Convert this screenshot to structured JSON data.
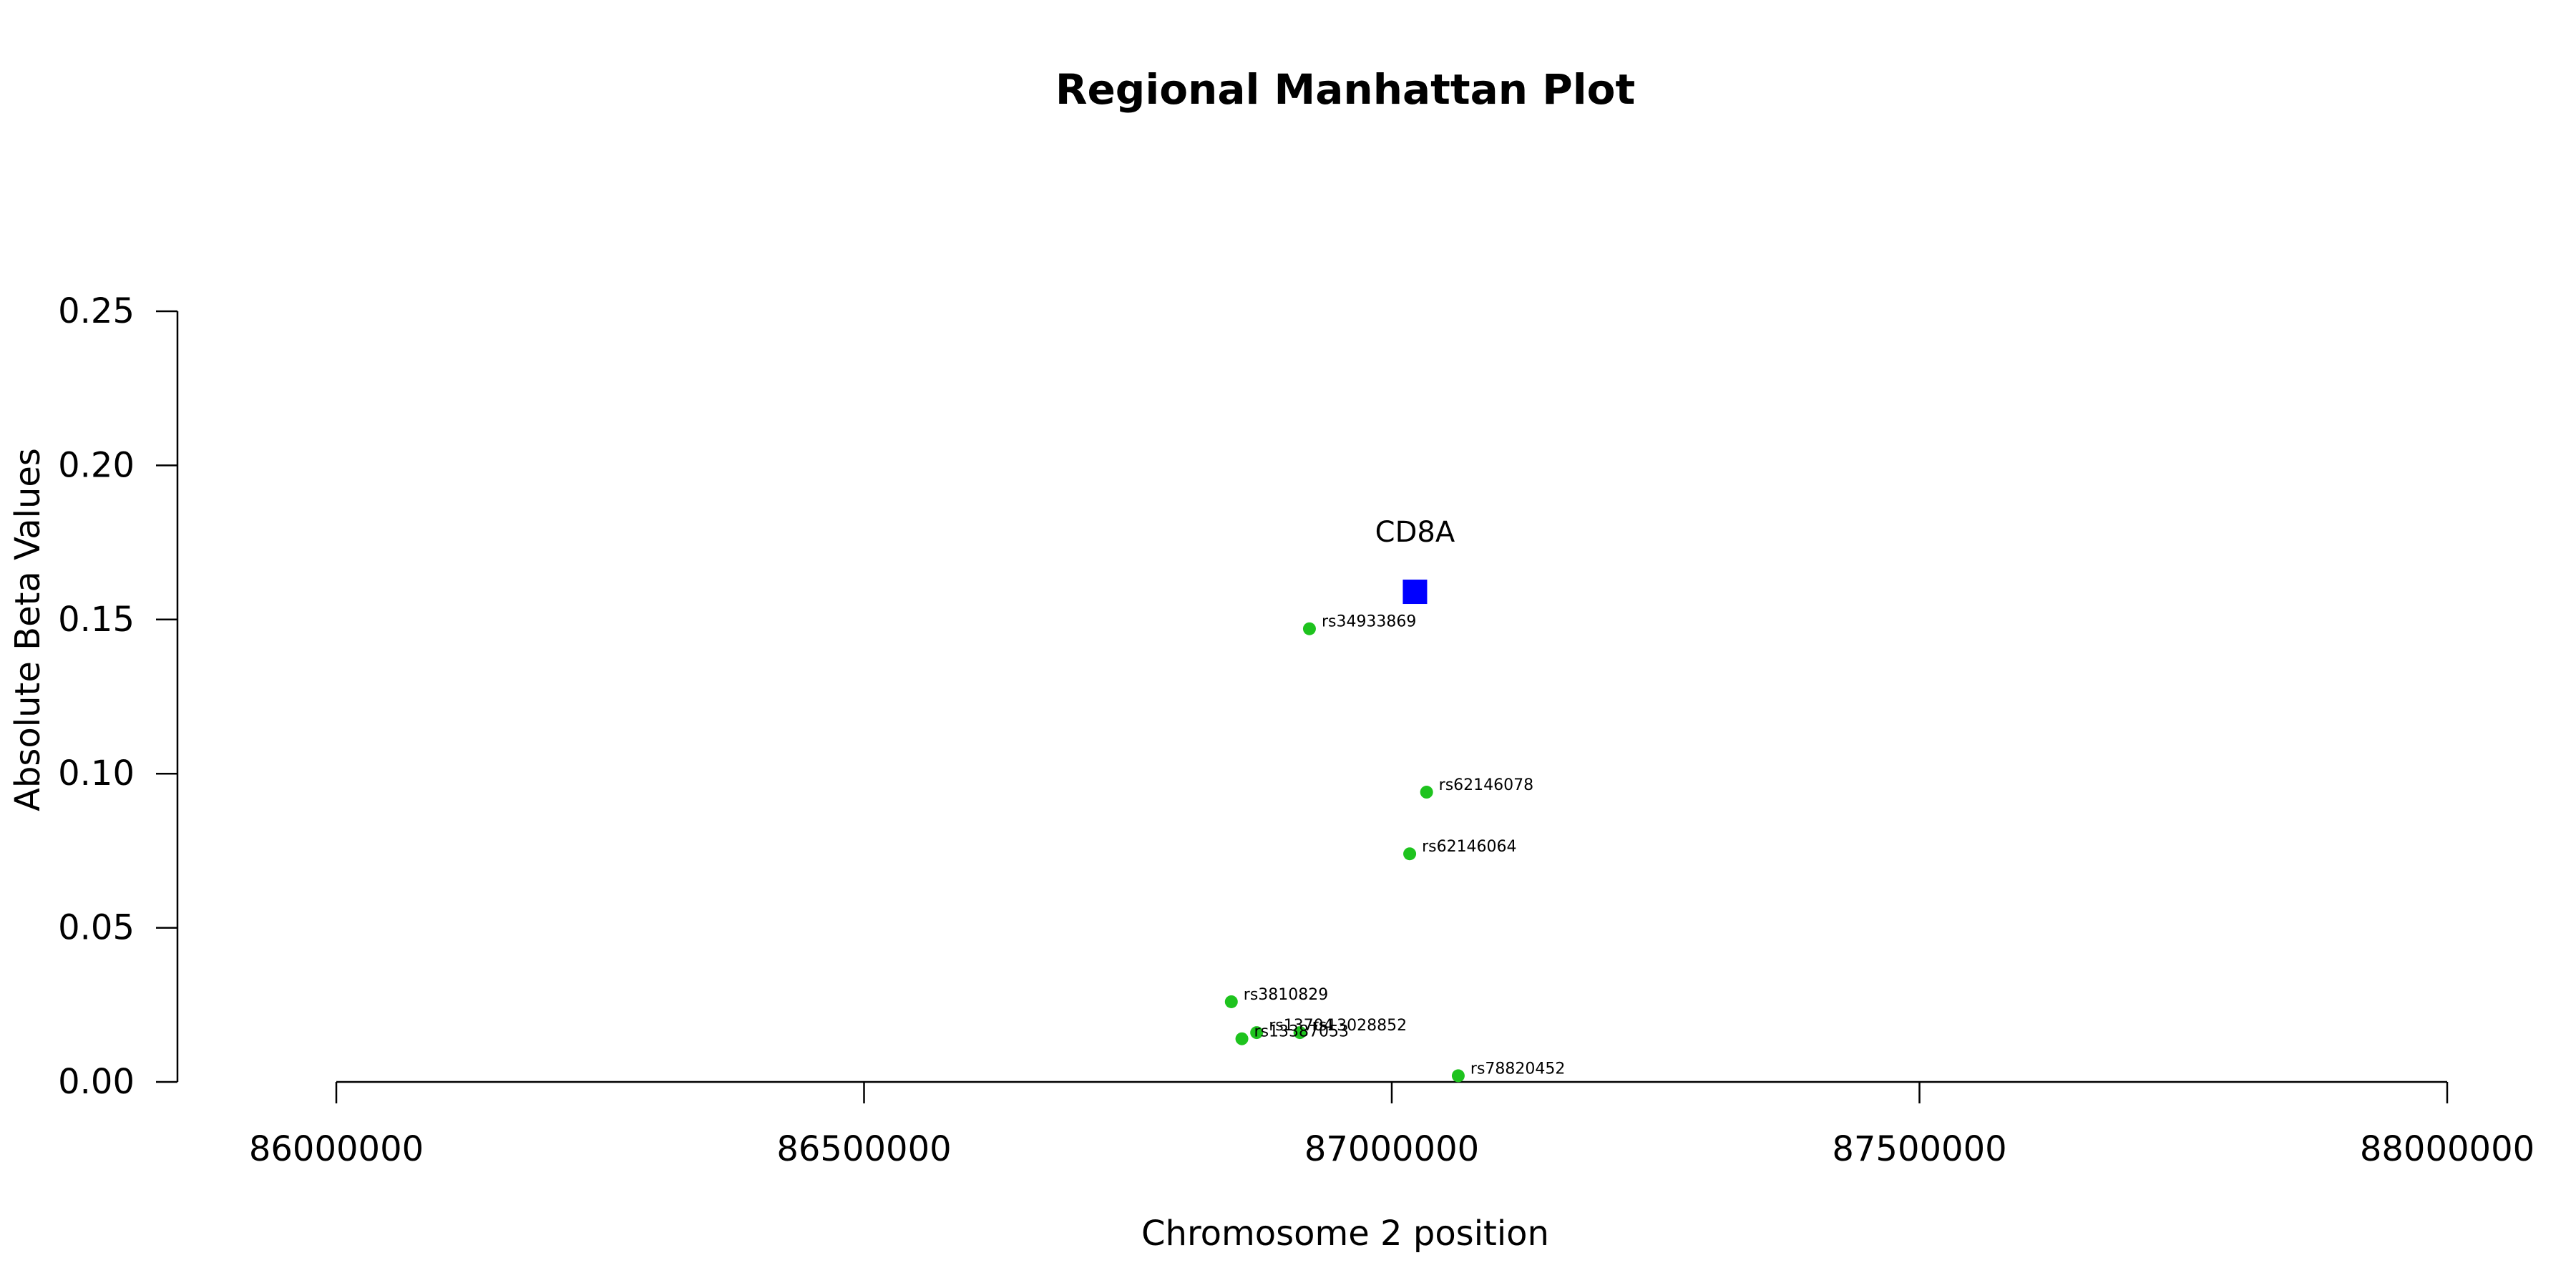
{
  "chart_data": {
    "type": "scatter",
    "title": "Regional Manhattan Plot",
    "xlabel": "Chromosome 2 position",
    "ylabel": "Absolute Beta Values",
    "xlim": [
      86000000,
      88000000
    ],
    "ylim": [
      0,
      0.25
    ],
    "xticks": [
      86000000,
      86500000,
      87000000,
      87500000,
      88000000
    ],
    "yticks": [
      0.0,
      0.05,
      0.1,
      0.15,
      0.2,
      0.25
    ],
    "xtick_labels": [
      "86000000",
      "86500000",
      "87000000",
      "87500000",
      "88000000"
    ],
    "ytick_labels": [
      "0.00",
      "0.05",
      "0.10",
      "0.15",
      "0.20",
      "0.25"
    ],
    "grid": false,
    "series": [
      {
        "marker": "circle",
        "color": "#1ec31e",
        "points": [
          {
            "label": "rs34933869",
            "x": 86922000,
            "y": 0.147
          },
          {
            "label": "rs62146078",
            "x": 87033000,
            "y": 0.094
          },
          {
            "label": "rs62146064",
            "x": 87017000,
            "y": 0.074
          },
          {
            "label": "rs3810829",
            "x": 86848000,
            "y": 0.026
          },
          {
            "label": "rs13704",
            "x": 86872000,
            "y": 0.016
          },
          {
            "label": "rs13028852",
            "x": 86913000,
            "y": 0.016
          },
          {
            "label": "rs13387053",
            "x": 86858000,
            "y": 0.014
          },
          {
            "label": "rs78820452",
            "x": 87063000,
            "y": 0.002
          }
        ]
      },
      {
        "marker": "square",
        "color": "#0000ff",
        "points": [
          {
            "label": "CD8A",
            "x": 87022000,
            "y": 0.159
          }
        ]
      }
    ]
  }
}
